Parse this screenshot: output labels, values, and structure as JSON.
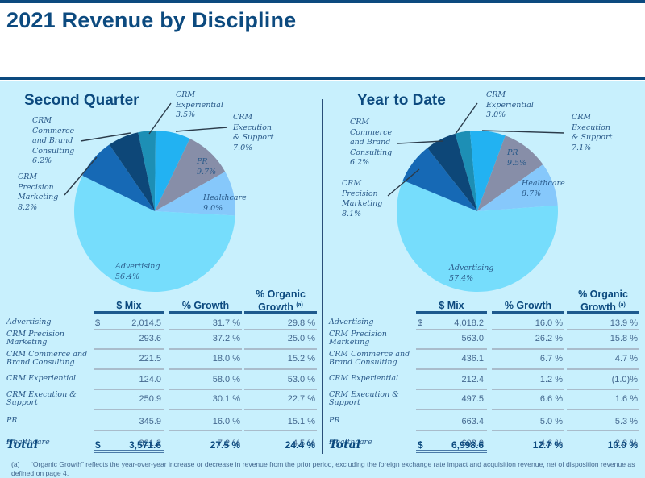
{
  "page_title": "2021 Revenue by Discipline",
  "colors": {
    "brand_navy": "#0c4a7f",
    "panel_bg": "#c8f0fd",
    "advertising": "#76ddfc",
    "crm_precision_marketing": "#1669b5",
    "crm_commerce_brand_consulting": "#0d4778",
    "crm_experiential": "#1d8fb5",
    "crm_execution_support": "#22b2f2",
    "pr": "#878ea8",
    "healthcare": "#86c8fb"
  },
  "sections": [
    {
      "title": "Second Quarter",
      "pie_labels": [
        {
          "name": "CRM\nExperiential",
          "pct": "3.5%"
        },
        {
          "name": "CRM\nExecution\n& Support",
          "pct": "7.0%"
        },
        {
          "name": "PR",
          "pct": "9.7%"
        },
        {
          "name": "Healthcare",
          "pct": "9.0%"
        },
        {
          "name": "Advertising",
          "pct": "56.4%"
        },
        {
          "name": "CRM\nPrecision\nMarketing",
          "pct": "8.2%"
        },
        {
          "name": "CRM\nCommerce\nand Brand\nConsulting",
          "pct": "6.2%"
        }
      ],
      "table": {
        "headers": [
          "$ Mix",
          "% Growth",
          "% Organic Growth"
        ],
        "header_line1": "% Organic",
        "header_line2": "Growth",
        "footnote_ref": "(a)",
        "currency": "$",
        "rows": [
          {
            "label": "Advertising",
            "mix": "2,014.5",
            "growth": "31.7 %",
            "organic": "29.8 %"
          },
          {
            "label": "CRM Precision Marketing",
            "mix": "293.6",
            "growth": "37.2 %",
            "organic": "25.0 %"
          },
          {
            "label": "CRM Commerce and Brand Consulting",
            "mix": "221.5",
            "growth": "18.0 %",
            "organic": "15.2 %"
          },
          {
            "label": "CRM Experiential",
            "mix": "124.0",
            "growth": "58.0 %",
            "organic": "53.0 %"
          },
          {
            "label": "CRM Execution & Support",
            "mix": "250.9",
            "growth": "30.1 %",
            "organic": "22.7 %"
          },
          {
            "label": "PR",
            "mix": "345.9",
            "growth": "16.0 %",
            "organic": "15.1 %"
          },
          {
            "label": "Healthcare",
            "mix": "321.2",
            "growth": "7.2 %",
            "organic": "4.5 %"
          }
        ],
        "total": {
          "label": "Total",
          "mix": "3,571.6",
          "growth": "27.5 %",
          "organic": "24.4 %"
        }
      }
    },
    {
      "title": "Year to Date",
      "pie_labels": [
        {
          "name": "CRM\nExperiential",
          "pct": "3.0%"
        },
        {
          "name": "CRM\nExecution\n& Support",
          "pct": "7.1%"
        },
        {
          "name": "PR",
          "pct": "9.5%"
        },
        {
          "name": "Healthcare",
          "pct": "8.7%"
        },
        {
          "name": "Advertising",
          "pct": "57.4%"
        },
        {
          "name": "CRM\nPrecision\nMarketing",
          "pct": "8.1%"
        },
        {
          "name": "CRM\nCommerce\nand Brand\nConsulting",
          "pct": "6.2%"
        }
      ],
      "table": {
        "headers": [
          "$ Mix",
          "% Growth",
          "% Organic Growth"
        ],
        "header_line1": "% Organic",
        "header_line2": "Growth",
        "footnote_ref": "(a)",
        "currency": "$",
        "rows": [
          {
            "label": "Advertising",
            "mix": "4,018.2",
            "growth": "16.0 %",
            "organic": "13.9 %"
          },
          {
            "label": "CRM Precision Marketing",
            "mix": "563.0",
            "growth": "26.2 %",
            "organic": "15.8 %"
          },
          {
            "label": "CRM Commerce and Brand Consulting",
            "mix": "436.1",
            "growth": "6.7 %",
            "organic": "4.7 %"
          },
          {
            "label": "CRM Experiential",
            "mix": "212.4",
            "growth": "1.2 %",
            "organic": "(1.0)%"
          },
          {
            "label": "CRM Execution & Support",
            "mix": "497.5",
            "growth": "6.6 %",
            "organic": "1.6 %"
          },
          {
            "label": "PR",
            "mix": "663.4",
            "growth": "5.0 %",
            "organic": "5.3 %"
          },
          {
            "label": "Healthcare",
            "mix": "608.0",
            "growth": "4.6 %",
            "organic": "2.3 %"
          }
        ],
        "total": {
          "label": "Total",
          "mix": "6,998.6",
          "growth": "12.7 %",
          "organic": "10.0 %"
        }
      }
    }
  ],
  "footnote": {
    "marker": "(a)",
    "text": "“Organic Growth” reflects the year-over-year increase or decrease in revenue from the prior period, excluding the foreign exchange rate impact and acquisition revenue, net of disposition revenue as defined on page 4."
  },
  "chart_data": [
    {
      "type": "pie",
      "title": "Second Quarter",
      "categories": [
        "CRM Experiential",
        "CRM Execution & Support",
        "PR",
        "Healthcare",
        "Advertising",
        "CRM Precision Marketing",
        "CRM Commerce and Brand Consulting"
      ],
      "values": [
        3.5,
        7.0,
        9.7,
        9.0,
        56.4,
        8.2,
        6.2
      ],
      "unit": "%"
    },
    {
      "type": "pie",
      "title": "Year to Date",
      "categories": [
        "CRM Experiential",
        "CRM Execution & Support",
        "PR",
        "Healthcare",
        "Advertising",
        "CRM Precision Marketing",
        "CRM Commerce and Brand Consulting"
      ],
      "values": [
        3.0,
        7.1,
        9.5,
        8.7,
        57.4,
        8.1,
        6.2
      ],
      "unit": "%"
    }
  ]
}
